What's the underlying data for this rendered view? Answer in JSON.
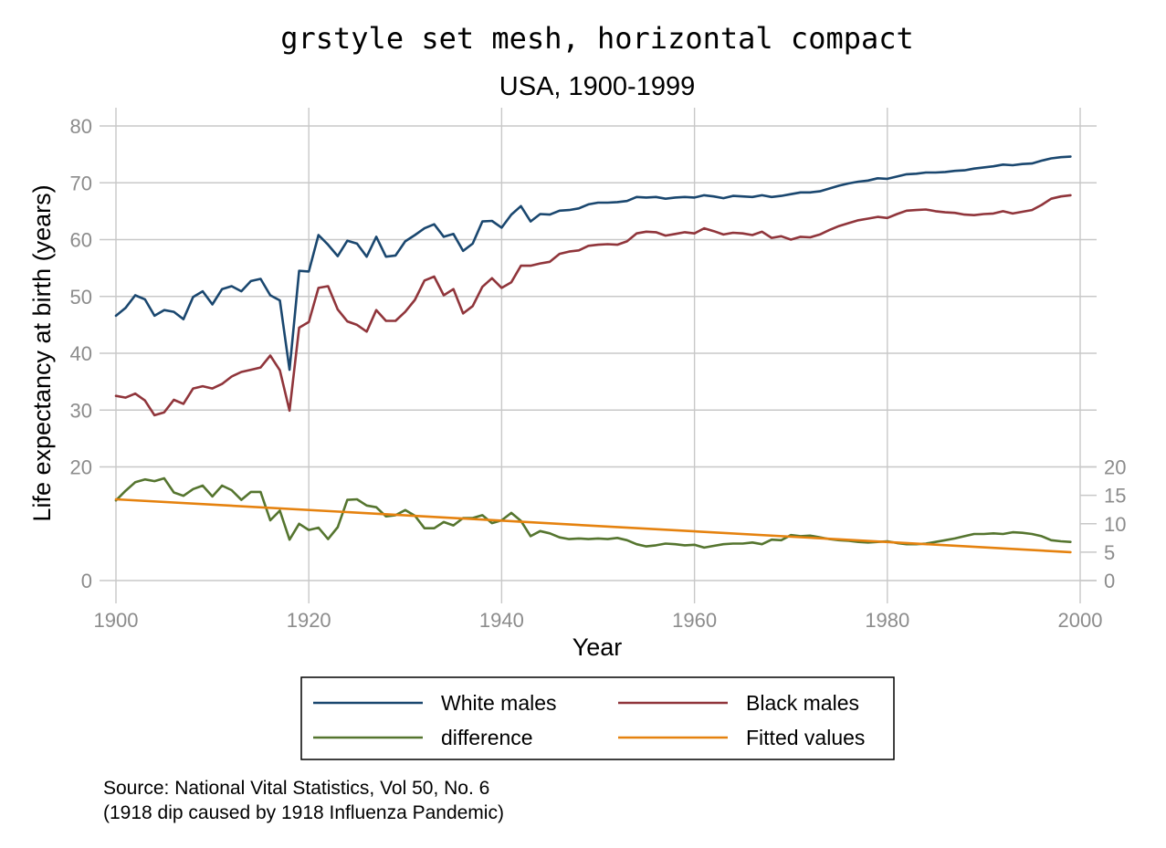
{
  "chart_data": {
    "type": "line",
    "title": "grstyle set mesh, horizontal compact",
    "subtitle": "USA, 1900-1999",
    "xlabel": "Year",
    "ylabel": "Life expectancy at birth (years)",
    "xlim": [
      1900,
      2000
    ],
    "ylim": [
      0,
      80
    ],
    "x_ticks": [
      1900,
      1920,
      1940,
      1960,
      1980,
      2000
    ],
    "y_ticks": [
      0,
      20,
      30,
      40,
      50,
      60,
      70,
      80
    ],
    "y2_ticks": [
      0,
      5,
      10,
      15,
      20
    ],
    "y2lim": [
      0,
      80
    ],
    "grid": true,
    "legend_placement": "bottom",
    "series": [
      {
        "name": "White males",
        "color": "#1a476f",
        "axis": "left",
        "x": [
          1900,
          1901,
          1902,
          1903,
          1904,
          1905,
          1906,
          1907,
          1908,
          1909,
          1910,
          1911,
          1912,
          1913,
          1914,
          1915,
          1916,
          1917,
          1918,
          1919,
          1920,
          1921,
          1922,
          1923,
          1924,
          1925,
          1926,
          1927,
          1928,
          1929,
          1930,
          1931,
          1932,
          1933,
          1934,
          1935,
          1936,
          1937,
          1938,
          1939,
          1940,
          1941,
          1942,
          1943,
          1944,
          1945,
          1946,
          1947,
          1948,
          1949,
          1950,
          1951,
          1952,
          1953,
          1954,
          1955,
          1956,
          1957,
          1958,
          1959,
          1960,
          1961,
          1962,
          1963,
          1964,
          1965,
          1966,
          1967,
          1968,
          1969,
          1970,
          1971,
          1972,
          1973,
          1974,
          1975,
          1976,
          1977,
          1978,
          1979,
          1980,
          1981,
          1982,
          1983,
          1984,
          1985,
          1986,
          1987,
          1988,
          1989,
          1990,
          1991,
          1992,
          1993,
          1994,
          1995,
          1996,
          1997,
          1998,
          1999
        ],
        "values": [
          46.6,
          48.0,
          50.2,
          49.5,
          46.6,
          47.6,
          47.3,
          46.0,
          49.9,
          50.9,
          48.6,
          51.3,
          51.8,
          50.9,
          52.7,
          53.1,
          50.2,
          49.3,
          37.1,
          54.5,
          54.4,
          60.8,
          59.1,
          57.1,
          59.8,
          59.3,
          57.0,
          60.5,
          57.0,
          57.2,
          59.7,
          60.8,
          62.0,
          62.7,
          60.5,
          61.0,
          58.0,
          59.3,
          63.2,
          63.3,
          62.1,
          64.4,
          65.9,
          63.2,
          64.5,
          64.4,
          65.1,
          65.2,
          65.5,
          66.2,
          66.5,
          66.5,
          66.6,
          66.8,
          67.5,
          67.4,
          67.5,
          67.2,
          67.4,
          67.5,
          67.4,
          67.8,
          67.6,
          67.3,
          67.7,
          67.6,
          67.5,
          67.8,
          67.5,
          67.7,
          68.0,
          68.3,
          68.3,
          68.5,
          69.0,
          69.5,
          69.9,
          70.2,
          70.4,
          70.8,
          70.7,
          71.1,
          71.5,
          71.6,
          71.8,
          71.8,
          71.9,
          72.1,
          72.2,
          72.5,
          72.7,
          72.9,
          73.2,
          73.1,
          73.3,
          73.4,
          73.9,
          74.3,
          74.5,
          74.6
        ]
      },
      {
        "name": "Black males",
        "color": "#90353b",
        "axis": "left",
        "x": [
          1900,
          1901,
          1902,
          1903,
          1904,
          1905,
          1906,
          1907,
          1908,
          1909,
          1910,
          1911,
          1912,
          1913,
          1914,
          1915,
          1916,
          1917,
          1918,
          1919,
          1920,
          1921,
          1922,
          1923,
          1924,
          1925,
          1926,
          1927,
          1928,
          1929,
          1930,
          1931,
          1932,
          1933,
          1934,
          1935,
          1936,
          1937,
          1938,
          1939,
          1940,
          1941,
          1942,
          1943,
          1944,
          1945,
          1946,
          1947,
          1948,
          1949,
          1950,
          1951,
          1952,
          1953,
          1954,
          1955,
          1956,
          1957,
          1958,
          1959,
          1960,
          1961,
          1962,
          1963,
          1964,
          1965,
          1966,
          1967,
          1968,
          1969,
          1970,
          1971,
          1972,
          1973,
          1974,
          1975,
          1976,
          1977,
          1978,
          1979,
          1980,
          1981,
          1982,
          1983,
          1984,
          1985,
          1986,
          1987,
          1988,
          1989,
          1990,
          1991,
          1992,
          1993,
          1994,
          1995,
          1996,
          1997,
          1998,
          1999
        ],
        "values": [
          32.5,
          32.2,
          32.9,
          31.7,
          29.1,
          29.6,
          31.8,
          31.1,
          33.8,
          34.2,
          33.8,
          34.6,
          35.9,
          36.7,
          37.1,
          37.5,
          39.6,
          37.0,
          29.9,
          44.5,
          45.5,
          51.5,
          51.8,
          47.7,
          45.6,
          45.0,
          43.8,
          47.6,
          45.7,
          45.7,
          47.3,
          49.4,
          52.8,
          53.5,
          50.2,
          51.3,
          47.0,
          48.3,
          51.7,
          53.2,
          51.5,
          52.5,
          55.4,
          55.4,
          55.8,
          56.1,
          57.5,
          57.9,
          58.1,
          58.9,
          59.1,
          59.2,
          59.1,
          59.7,
          61.1,
          61.4,
          61.3,
          60.7,
          61.0,
          61.3,
          61.1,
          62.0,
          61.5,
          60.9,
          61.2,
          61.1,
          60.8,
          61.4,
          60.3,
          60.6,
          60.0,
          60.5,
          60.4,
          60.9,
          61.7,
          62.4,
          62.9,
          63.4,
          63.7,
          64.0,
          63.8,
          64.5,
          65.1,
          65.2,
          65.3,
          65.0,
          64.8,
          64.7,
          64.4,
          64.3,
          64.5,
          64.6,
          65.0,
          64.6,
          64.9,
          65.2,
          66.1,
          67.2,
          67.6,
          67.8
        ]
      },
      {
        "name": "difference",
        "color": "#55752f",
        "axis": "left",
        "x": [
          1900,
          1901,
          1902,
          1903,
          1904,
          1905,
          1906,
          1907,
          1908,
          1909,
          1910,
          1911,
          1912,
          1913,
          1914,
          1915,
          1916,
          1917,
          1918,
          1919,
          1920,
          1921,
          1922,
          1923,
          1924,
          1925,
          1926,
          1927,
          1928,
          1929,
          1930,
          1931,
          1932,
          1933,
          1934,
          1935,
          1936,
          1937,
          1938,
          1939,
          1940,
          1941,
          1942,
          1943,
          1944,
          1945,
          1946,
          1947,
          1948,
          1949,
          1950,
          1951,
          1952,
          1953,
          1954,
          1955,
          1956,
          1957,
          1958,
          1959,
          1960,
          1961,
          1962,
          1963,
          1964,
          1965,
          1966,
          1967,
          1968,
          1969,
          1970,
          1971,
          1972,
          1973,
          1974,
          1975,
          1976,
          1977,
          1978,
          1979,
          1980,
          1981,
          1982,
          1983,
          1984,
          1985,
          1986,
          1987,
          1988,
          1989,
          1990,
          1991,
          1992,
          1993,
          1994,
          1995,
          1996,
          1997,
          1998,
          1999
        ],
        "values": [
          14.1,
          15.8,
          17.3,
          17.8,
          17.5,
          18.0,
          15.5,
          14.9,
          16.1,
          16.7,
          14.8,
          16.7,
          15.9,
          14.2,
          15.6,
          15.6,
          10.6,
          12.3,
          7.2,
          10.0,
          8.9,
          9.3,
          7.3,
          9.4,
          14.2,
          14.3,
          13.2,
          12.9,
          11.3,
          11.5,
          12.4,
          11.4,
          9.2,
          9.2,
          10.3,
          9.7,
          11.0,
          11.0,
          11.5,
          10.1,
          10.6,
          11.9,
          10.5,
          7.8,
          8.7,
          8.3,
          7.6,
          7.3,
          7.4,
          7.3,
          7.4,
          7.3,
          7.5,
          7.1,
          6.4,
          6.0,
          6.2,
          6.5,
          6.4,
          6.2,
          6.3,
          5.8,
          6.1,
          6.4,
          6.5,
          6.5,
          6.7,
          6.4,
          7.2,
          7.1,
          8.0,
          7.8,
          7.9,
          7.6,
          7.3,
          7.1,
          7.0,
          6.8,
          6.7,
          6.8,
          6.9,
          6.6,
          6.4,
          6.4,
          6.5,
          6.8,
          7.1,
          7.4,
          7.8,
          8.2,
          8.2,
          8.3,
          8.2,
          8.5,
          8.4,
          8.2,
          7.8,
          7.1,
          6.9,
          6.8
        ]
      },
      {
        "name": "Fitted values",
        "color": "#e5820f",
        "axis": "left",
        "x": [
          1900,
          1999
        ],
        "values": [
          14.3,
          5.0
        ]
      }
    ],
    "note_lines": [
      "Source: National Vital Statistics, Vol 50, No. 6",
      "(1918 dip caused by 1918 Influenza Pandemic)"
    ]
  }
}
